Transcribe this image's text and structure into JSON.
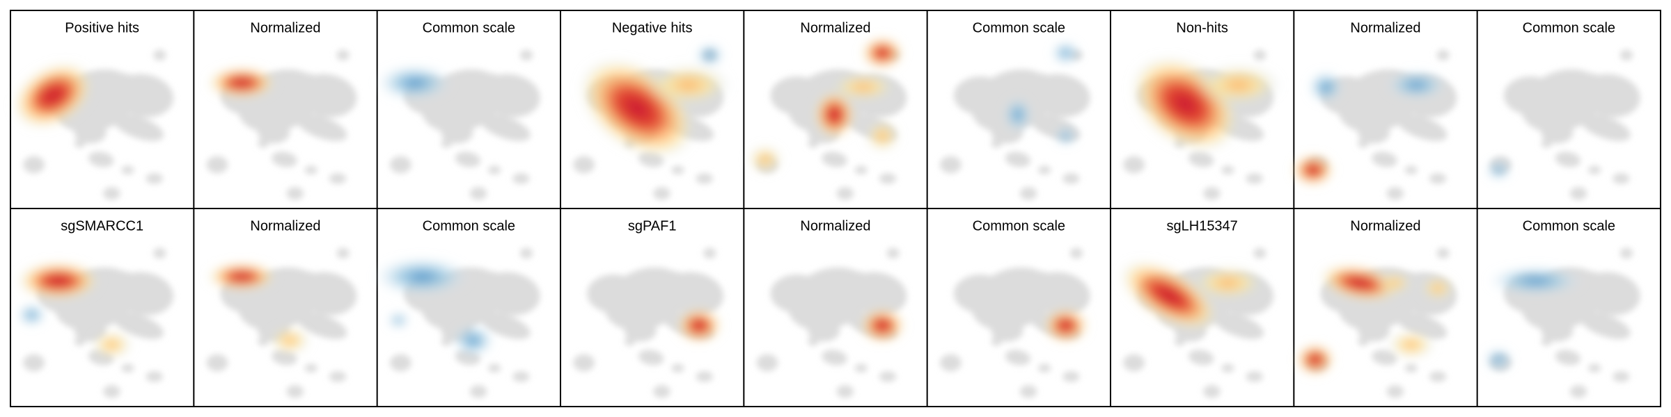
{
  "panels": [
    {
      "title": "Positive hits"
    },
    {
      "title": "Normalized"
    },
    {
      "title": "Common scale"
    },
    {
      "title": "Negative hits"
    },
    {
      "title": "Normalized"
    },
    {
      "title": "Common scale"
    },
    {
      "title": "Non-hits"
    },
    {
      "title": "Normalized"
    },
    {
      "title": "Common scale"
    },
    {
      "title": "sgSMARCC1"
    },
    {
      "title": "Normalized"
    },
    {
      "title": "Common scale"
    },
    {
      "title": "sgPAF1"
    },
    {
      "title": "Normalized"
    },
    {
      "title": "Common scale"
    },
    {
      "title": "sgLH15347"
    },
    {
      "title": "Normalized"
    },
    {
      "title": "Common scale"
    }
  ]
}
